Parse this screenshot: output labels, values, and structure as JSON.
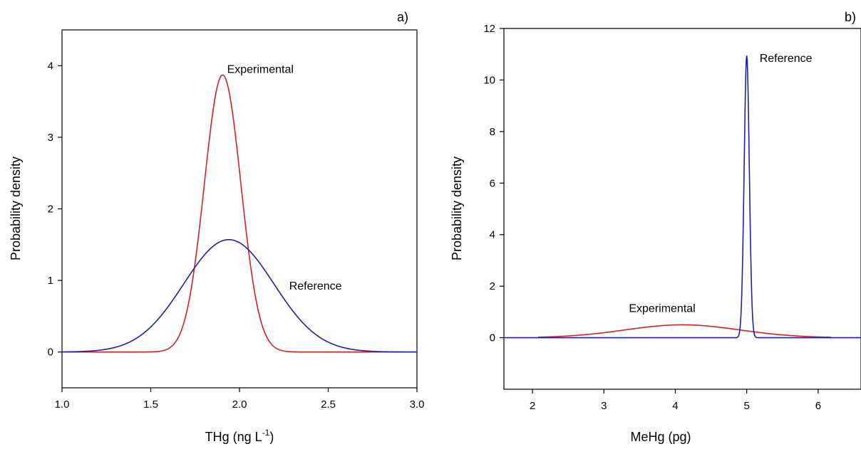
{
  "chart_data": [
    {
      "type": "line",
      "panel_label": "a)",
      "xlabel": "THg (ng L",
      "xlabel_sup": "-1",
      "xlabel_end": ")",
      "ylabel": "Probability density",
      "xlim": [
        1.0,
        3.0
      ],
      "ylim": [
        -0.5,
        4.5
      ],
      "xticks": [
        {
          "value": 1.0,
          "label": "1.0"
        },
        {
          "value": 1.5,
          "label": "1.5"
        },
        {
          "value": 2.0,
          "label": "2.0"
        },
        {
          "value": 2.5,
          "label": "2.5"
        },
        {
          "value": 3.0,
          "label": "3.0"
        }
      ],
      "yticks": [
        {
          "value": 0,
          "label": "0"
        },
        {
          "value": 1,
          "label": "1"
        },
        {
          "value": 2,
          "label": "2"
        },
        {
          "value": 3,
          "label": "3"
        },
        {
          "value": 4,
          "label": "4"
        }
      ],
      "series": [
        {
          "label": "Experimental",
          "color": "#d62020",
          "mean": 1.905,
          "sd": 0.103,
          "peak": 3.87,
          "x_range": [
            1.0,
            3.0
          ]
        },
        {
          "label": "Reference",
          "color": "#1f1faa",
          "mean": 1.94,
          "sd": 0.254,
          "peak": 1.57,
          "x_range": [
            1.0,
            3.0
          ]
        }
      ],
      "annotations": [
        {
          "text": "Experimental",
          "x": 1.93,
          "y": 3.9
        },
        {
          "text": "Reference",
          "x": 2.28,
          "y": 0.87
        }
      ]
    },
    {
      "type": "line",
      "panel_label": "b)",
      "xlabel": "MeHg (pg)",
      "ylabel": "Probability density",
      "xlim": [
        1.6,
        6.6
      ],
      "ylim": [
        -2,
        12
      ],
      "xticks": [
        {
          "value": 2,
          "label": "2"
        },
        {
          "value": 3,
          "label": "3"
        },
        {
          "value": 4,
          "label": "4"
        },
        {
          "value": 5,
          "label": "5"
        },
        {
          "value": 6,
          "label": "6"
        }
      ],
      "yticks": [
        {
          "value": 0,
          "label": "0"
        },
        {
          "value": 2,
          "label": "2"
        },
        {
          "value": 4,
          "label": "4"
        },
        {
          "value": 6,
          "label": "6"
        },
        {
          "value": 8,
          "label": "8"
        },
        {
          "value": 10,
          "label": "10"
        },
        {
          "value": 12,
          "label": "12"
        }
      ],
      "series": [
        {
          "label": "Experimental",
          "color": "#d62020",
          "mean": 4.1,
          "sd": 0.8,
          "peak": 0.5,
          "x_range": [
            2.08,
            6.18
          ]
        },
        {
          "label": "Reference",
          "color": "#1f1faa",
          "mean": 5.0,
          "sd": 0.036,
          "peak": 10.95,
          "x_range": [
            1.6,
            6.6
          ]
        }
      ],
      "annotations": [
        {
          "text": "Experimental",
          "x": 3.35,
          "y": 1.0
        },
        {
          "text": "Reference",
          "x": 5.18,
          "y": 10.7
        }
      ]
    }
  ]
}
